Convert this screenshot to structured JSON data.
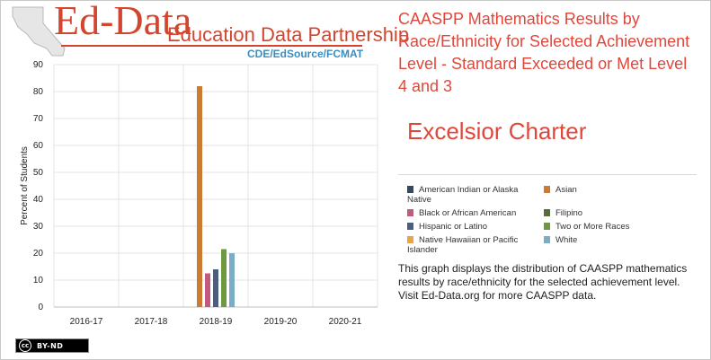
{
  "logo": {
    "main": "Ed-Data",
    "sub": "Education Data Partnership",
    "partners": "CDE/EdSource/FCMAT"
  },
  "school_name": "Excelsior Charter",
  "description": "This graph displays the distribution of CAASPP mathematics results by race/ethnicity for the selected achievement level. Visit Ed-Data.org for more CAASPP data.",
  "license_badge": {
    "symbol": "cc",
    "text": "BY-ND"
  },
  "chart_data": {
    "type": "bar",
    "title": "CAASPP Mathematics Results by Race/Ethnicity for Selected Achievement Level - Standard Exceeded or Met Level 4 and 3",
    "ylabel": "Percent of Students",
    "xlabel": "",
    "ylim": [
      0,
      90
    ],
    "yticks": [
      0,
      10,
      20,
      30,
      40,
      50,
      60,
      70,
      80,
      90
    ],
    "grid": true,
    "legend_position": "right",
    "categories": [
      "2016-17",
      "2017-18",
      "2018-19",
      "2019-20",
      "2020-21"
    ],
    "series": [
      {
        "name": "American Indian or Alaska Native",
        "color": "#34495e",
        "values": [
          null,
          null,
          null,
          null,
          null
        ]
      },
      {
        "name": "Asian",
        "color": "#cd7a33",
        "values": [
          null,
          null,
          82,
          null,
          null
        ]
      },
      {
        "name": "Black or African American",
        "color": "#c2597e",
        "values": [
          null,
          null,
          12.5,
          null,
          null
        ]
      },
      {
        "name": "Filipino",
        "color": "#566d34",
        "values": [
          null,
          null,
          null,
          null,
          null
        ]
      },
      {
        "name": "Hispanic or Latino",
        "color": "#4a5f80",
        "values": [
          null,
          null,
          14,
          null,
          null
        ]
      },
      {
        "name": "Two or More Races",
        "color": "#6d9a3f",
        "values": [
          null,
          null,
          21.5,
          null,
          null
        ]
      },
      {
        "name": "Native Hawaiian or Pacific Islander",
        "color": "#e9a446",
        "values": [
          null,
          null,
          null,
          null,
          null
        ]
      },
      {
        "name": "White",
        "color": "#7aadc6",
        "values": [
          null,
          null,
          20,
          null,
          null
        ]
      }
    ],
    "bar_order": [
      "Asian",
      "Black or African American",
      "Hispanic or Latino",
      "Two or More Races",
      "White"
    ]
  }
}
